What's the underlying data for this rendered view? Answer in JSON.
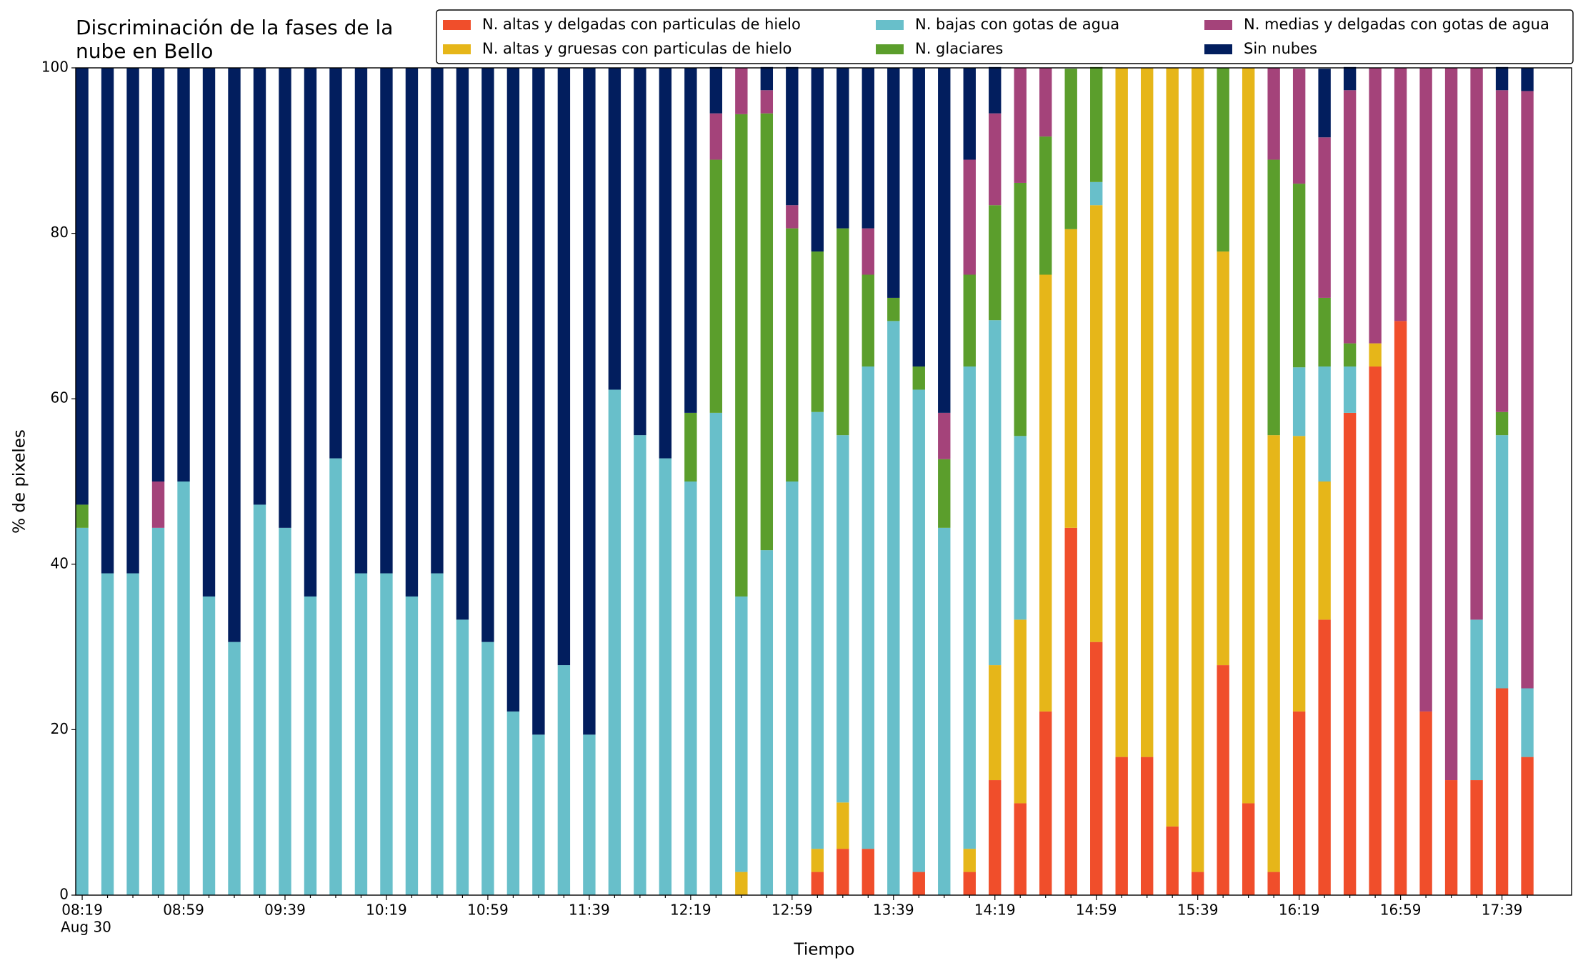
{
  "chart_data": {
    "type": "stacked_bar",
    "title": [
      "Discriminación de la fases de la",
      "nube en Bello"
    ],
    "xlabel": "Tiempo",
    "ylabel": "% de pixeles",
    "date": "Aug 30",
    "categories": [
      "08:19",
      null,
      null,
      null,
      "08:59",
      null,
      null,
      null,
      "09:39",
      null,
      null,
      null,
      "10:19",
      null,
      null,
      null,
      "10:59",
      null,
      null,
      null,
      "11:39",
      null,
      null,
      null,
      "12:19",
      null,
      null,
      null,
      "12:59",
      null,
      null,
      null,
      "13:39",
      null,
      null,
      null,
      "14:19",
      null,
      null,
      null,
      "14:59",
      null,
      null,
      null,
      "15:39",
      null,
      null,
      null,
      "16:19",
      null,
      null,
      null,
      "16:59",
      null,
      null,
      null,
      "17:39",
      null
    ],
    "ylim": [
      0,
      100
    ],
    "yticks": [
      0,
      20,
      40,
      60,
      80,
      100
    ],
    "series": [
      {
        "name": "N. altas y delgadas con particulas de hielo",
        "color": "#f04e2b",
        "values": [
          0,
          0,
          0,
          0,
          0,
          0,
          0,
          0,
          0,
          0,
          0,
          0,
          0,
          0,
          0,
          0,
          0,
          0,
          0,
          0,
          0,
          0,
          0,
          0,
          0,
          0,
          0,
          0,
          0,
          2.8,
          5.6,
          5.6,
          0,
          2.8,
          0,
          2.8,
          13.9,
          11.1,
          22.2,
          44.4,
          30.6,
          16.7,
          16.7,
          8.3,
          2.8,
          27.8,
          11.1,
          2.8,
          22.2,
          33.3,
          58.3,
          63.9,
          69.4,
          22.2,
          13.9,
          13.9,
          25,
          16.7
        ]
      },
      {
        "name": "N. altas y gruesas con particulas de hielo",
        "color": "#e6b619",
        "values": [
          0,
          0,
          0,
          0,
          0,
          0,
          0,
          0,
          0,
          0,
          0,
          0,
          0,
          0,
          0,
          0,
          0,
          0,
          0,
          0,
          0,
          0,
          0,
          0,
          0,
          0,
          2.8,
          0,
          0,
          2.8,
          5.6,
          0,
          0,
          0,
          0,
          2.8,
          13.9,
          22.2,
          52.8,
          36.1,
          52.8,
          83.3,
          83.3,
          91.7,
          97.2,
          50,
          88.9,
          52.8,
          33.3,
          16.7,
          0,
          2.8,
          0,
          0,
          0,
          0,
          0,
          0
        ]
      },
      {
        "name": "N. bajas con gotas de agua",
        "color": "#68bfca",
        "values": [
          44.4,
          38.9,
          38.9,
          44.4,
          50,
          36.1,
          30.6,
          47.2,
          44.4,
          36.1,
          52.8,
          38.9,
          38.9,
          36.1,
          38.9,
          33.3,
          30.6,
          22.2,
          19.4,
          27.8,
          19.4,
          61.1,
          55.6,
          52.8,
          50,
          58.3,
          33.3,
          41.7,
          50,
          52.8,
          44.4,
          58.3,
          69.4,
          58.3,
          44.4,
          58.3,
          41.7,
          22.2,
          0,
          0,
          2.8,
          0,
          0,
          0,
          0,
          0,
          0,
          0,
          8.3,
          13.9,
          5.6,
          0,
          0,
          0,
          0,
          19.4,
          30.6,
          8.3
        ]
      },
      {
        "name": "N. glaciares",
        "color": "#5b9e2c",
        "values": [
          2.8,
          0,
          0,
          0,
          0,
          0,
          0,
          0,
          0,
          0,
          0,
          0,
          0,
          0,
          0,
          0,
          0,
          0,
          0,
          0,
          0,
          0,
          0,
          0,
          8.3,
          30.6,
          58.3,
          52.8,
          30.6,
          19.4,
          25,
          11.1,
          2.8,
          2.8,
          8.3,
          11.1,
          13.9,
          30.6,
          16.7,
          19.4,
          13.9,
          0,
          0,
          0,
          0,
          22.2,
          0,
          33.3,
          22.2,
          8.3,
          2.8,
          0,
          0,
          0,
          0,
          0,
          2.8,
          0
        ]
      },
      {
        "name": "N. medias y delgadas con gotas de agua",
        "color": "#a4437a",
        "values": [
          0,
          0,
          0,
          5.6,
          0,
          0,
          0,
          0,
          0,
          0,
          0,
          0,
          0,
          0,
          0,
          0,
          0,
          0,
          0,
          0,
          0,
          0,
          0,
          0,
          0,
          5.6,
          5.6,
          2.8,
          2.8,
          0,
          0,
          5.6,
          0,
          0,
          5.6,
          13.9,
          11.1,
          13.9,
          8.3,
          0,
          0,
          0,
          0,
          0,
          0,
          0,
          0,
          11.1,
          13.9,
          19.4,
          30.6,
          33.3,
          30.6,
          77.8,
          86.1,
          66.7,
          38.9,
          72.2
        ]
      },
      {
        "name": "Sin nubes",
        "color": "#021e5e",
        "values": [
          52.8,
          61.1,
          61.1,
          50,
          50,
          63.9,
          69.4,
          52.8,
          55.6,
          63.9,
          47.2,
          61.1,
          61.1,
          63.9,
          61.1,
          66.7,
          69.4,
          77.8,
          80.6,
          72.2,
          80.6,
          38.9,
          44.4,
          47.2,
          41.7,
          5.6,
          0,
          2.8,
          16.7,
          22.2,
          19.4,
          19.4,
          27.8,
          36.1,
          41.7,
          11.1,
          5.6,
          0,
          0,
          0,
          0,
          0,
          0,
          0,
          0,
          0,
          0,
          0,
          0,
          8.3,
          2.8,
          0,
          0,
          0,
          0,
          0,
          2.8,
          2.8
        ]
      }
    ]
  }
}
